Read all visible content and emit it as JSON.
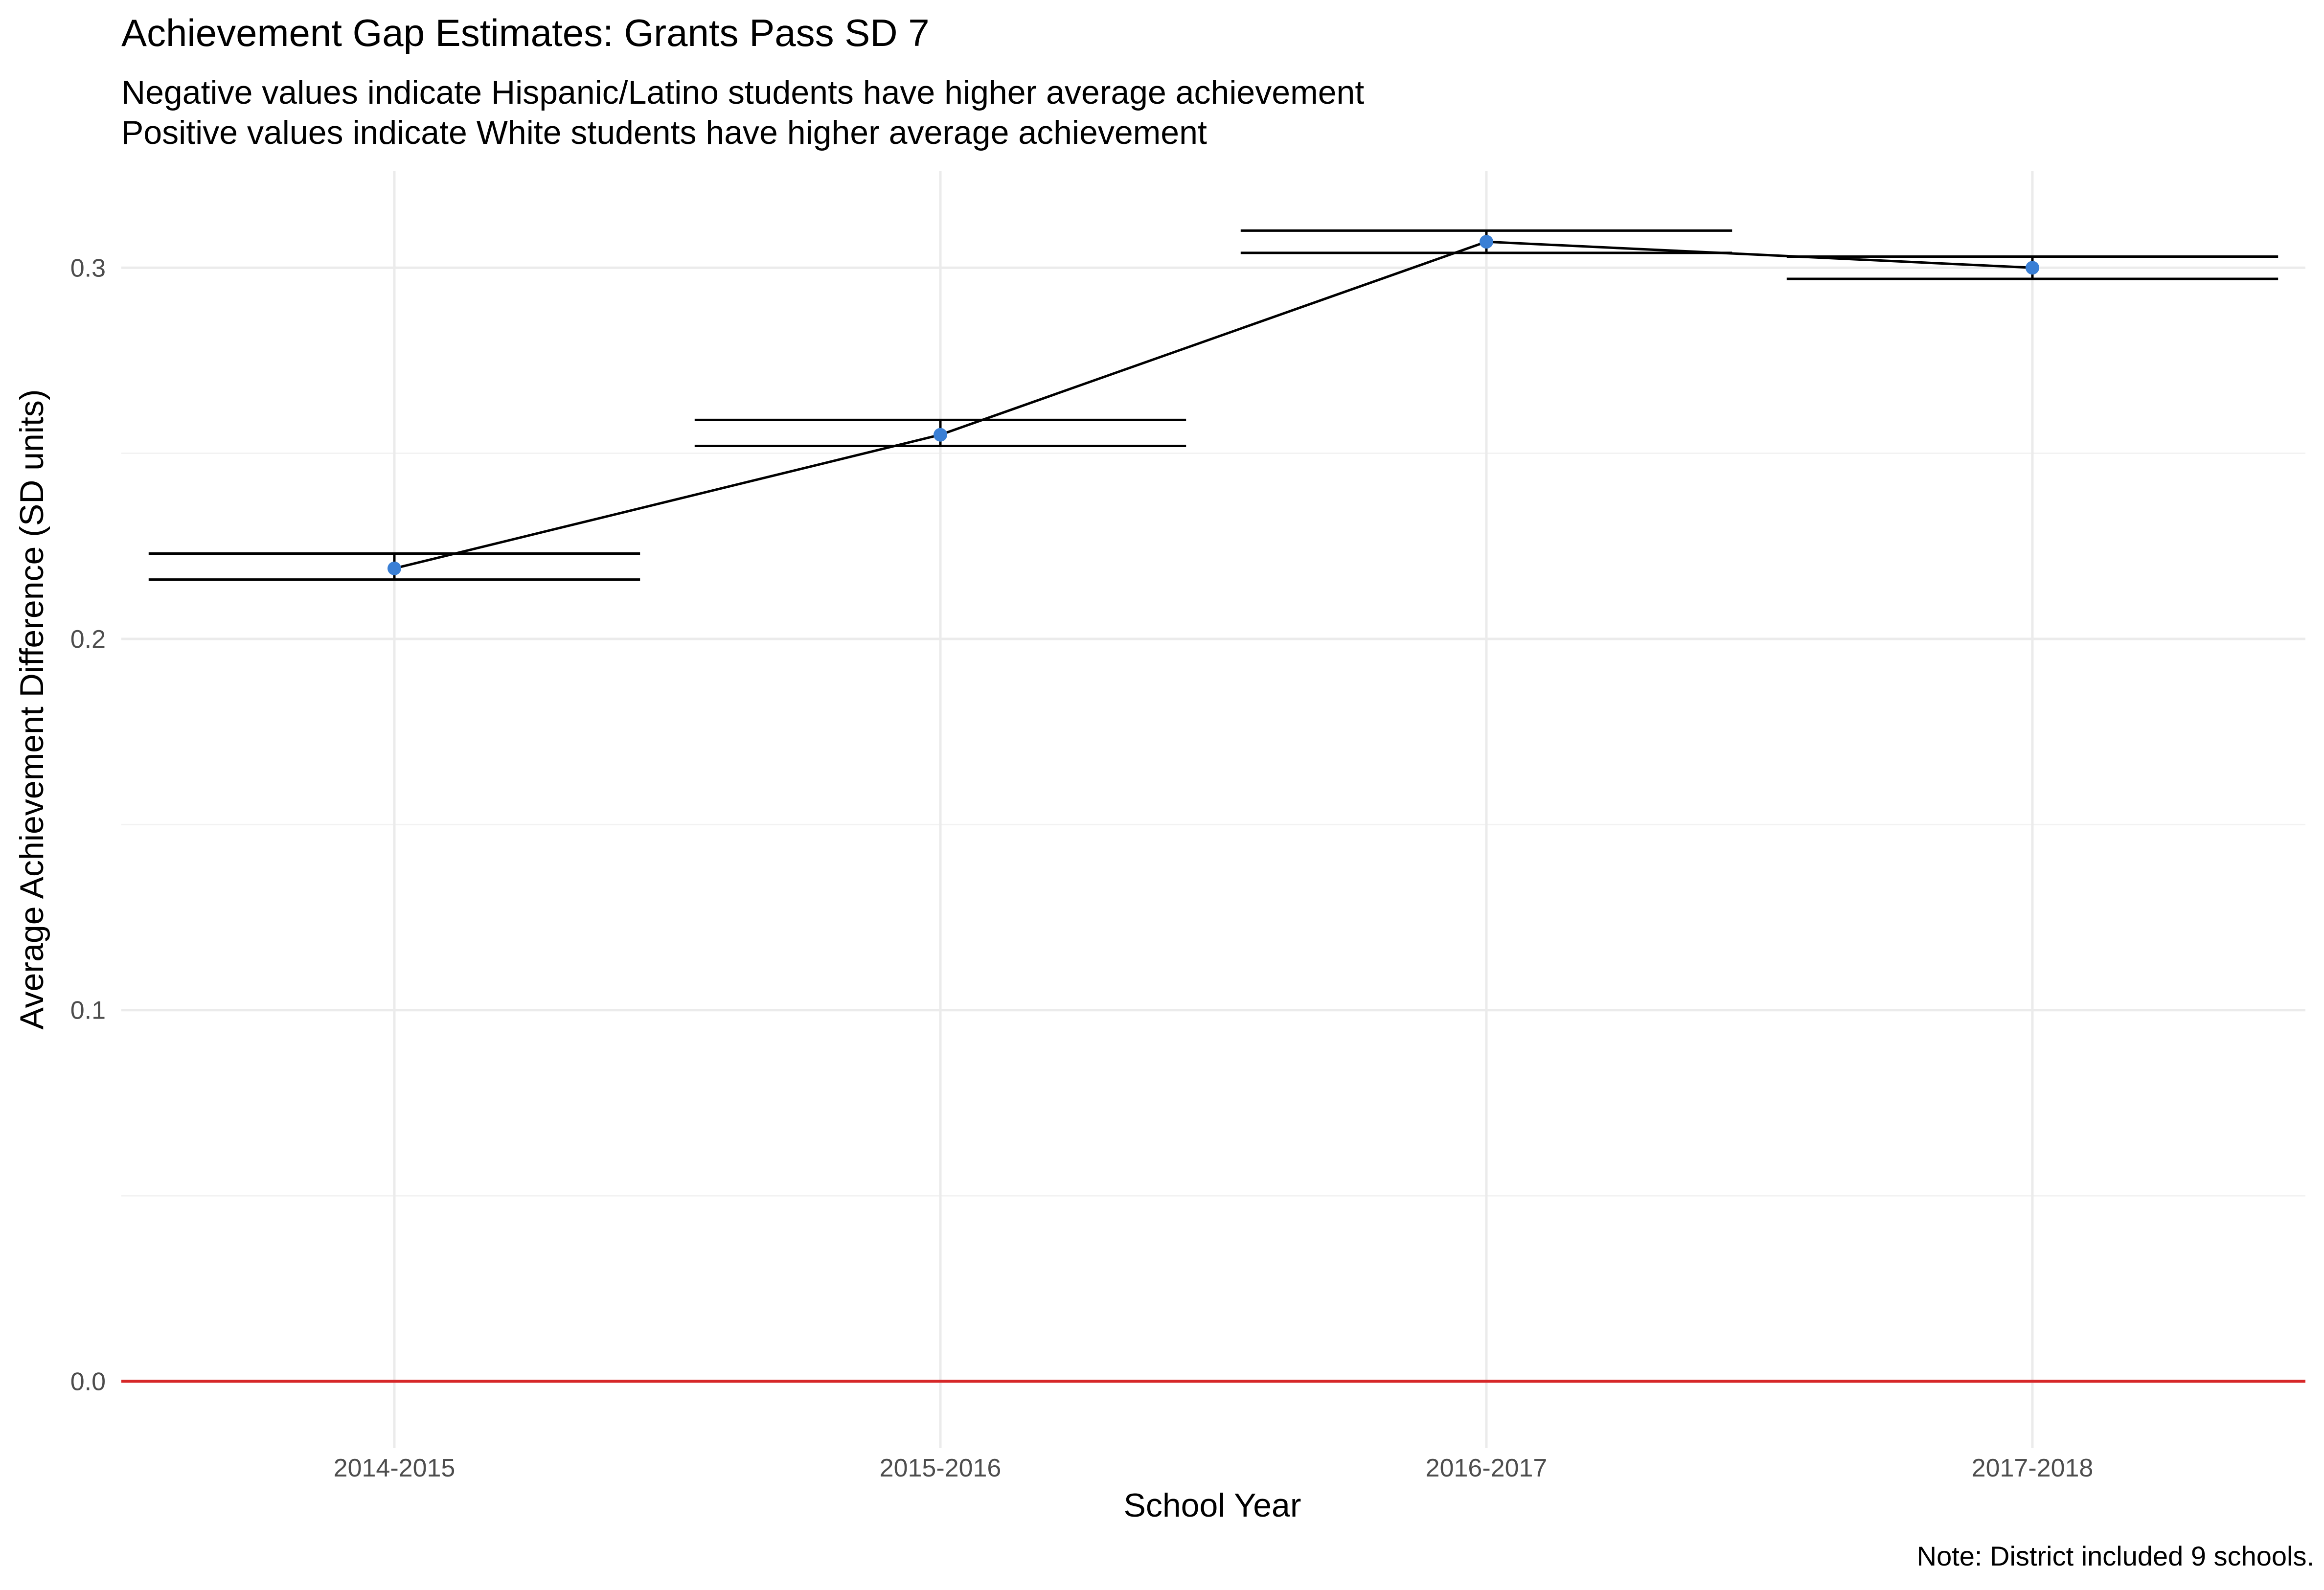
{
  "chart_data": {
    "type": "line",
    "title": "Achievement Gap Estimates: Grants Pass SD 7",
    "subtitle_lines": [
      "Negative values indicate Hispanic/Latino students have higher average achievement",
      "Positive values indicate White students have higher average achievement"
    ],
    "caption": "Note: District included 9 schools.",
    "xlabel": "School Year",
    "ylabel": "Average Achievement Difference (SD units)",
    "categories": [
      "2014-2015",
      "2015-2016",
      "2016-2017",
      "2017-2018"
    ],
    "values": [
      0.219,
      0.255,
      0.307,
      0.3
    ],
    "error_bars": [
      {
        "lower": 0.216,
        "upper": 0.223
      },
      {
        "lower": 0.252,
        "upper": 0.259
      },
      {
        "lower": 0.304,
        "upper": 0.31
      },
      {
        "lower": 0.297,
        "upper": 0.303
      }
    ],
    "ylim": [
      -0.018,
      0.326
    ],
    "yticks": [
      0.0,
      0.1,
      0.2,
      0.3
    ],
    "ytick_labels": [
      "0.0",
      "0.1",
      "0.2",
      "0.3"
    ],
    "reference_line": {
      "y": 0.0,
      "color": "#d62728"
    },
    "point_color": "#3a7fd5",
    "line_color": "#000000",
    "grid": true,
    "legend": "none"
  }
}
